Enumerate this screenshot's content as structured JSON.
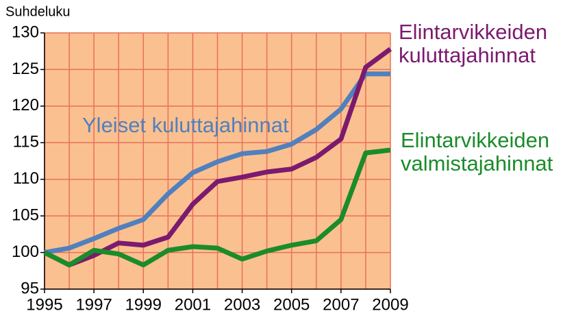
{
  "chart_data": {
    "type": "line",
    "ylabel": "Suhdeluku",
    "x": [
      1995,
      1996,
      1997,
      1998,
      1999,
      2000,
      2001,
      2002,
      2003,
      2004,
      2005,
      2006,
      2007,
      2008,
      2009
    ],
    "series": [
      {
        "name": "Yleiset kuluttajahinnat",
        "color": "#5080be",
        "values": [
          100,
          100.6,
          101.9,
          103.3,
          104.5,
          108,
          110.9,
          112.4,
          113.5,
          113.8,
          114.8,
          116.8,
          119.6,
          124.4,
          124.4
        ]
      },
      {
        "name": "Elintarvikkeiden kuluttajahinnat",
        "color": "#7b1a6e",
        "values": [
          100,
          98.3,
          99.6,
          101.3,
          101,
          102.1,
          106.6,
          109.7,
          110.3,
          111,
          111.4,
          113,
          115.5,
          125.3,
          127.8
        ]
      },
      {
        "name": "Elintarvikkeiden valmistajahinnat",
        "color": "#1a8c2a",
        "values": [
          100,
          98.3,
          100.3,
          99.8,
          98.3,
          100.3,
          100.8,
          100.6,
          99.1,
          100.2,
          101,
          101.6,
          104.5,
          113.6,
          114
        ]
      }
    ],
    "xlim": [
      1995,
      2009
    ],
    "xticks": [
      1995,
      1997,
      1999,
      2001,
      2003,
      2005,
      2007,
      2009
    ],
    "ylim": [
      95,
      130
    ],
    "yticks": [
      95,
      100,
      105,
      110,
      115,
      120,
      125,
      130
    ],
    "grid": true
  }
}
